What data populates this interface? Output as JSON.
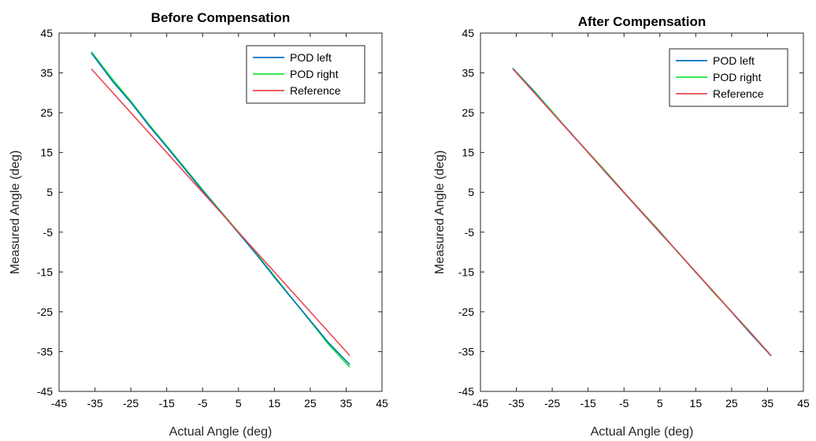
{
  "chart_data": [
    {
      "type": "line",
      "title": "Before Compensation",
      "xlabel": "Actual Angle (deg)",
      "ylabel": "Measured Angle (deg)",
      "xlim": [
        -45,
        45
      ],
      "ylim": [
        -45,
        45
      ],
      "xticks": [
        -45,
        -35,
        -25,
        -15,
        -5,
        5,
        15,
        25,
        35,
        45
      ],
      "yticks": [
        -45,
        -35,
        -25,
        -15,
        -5,
        5,
        15,
        25,
        35,
        45
      ],
      "grid": false,
      "legend_position": "top-right",
      "series": [
        {
          "name": "POD left",
          "color": "#0072BD",
          "x": [
            -36,
            -30,
            -25,
            -20,
            -15,
            -10,
            -5,
            0,
            5,
            10,
            15,
            20,
            25,
            30,
            36
          ],
          "y": [
            40.0,
            32.8,
            27.6,
            21.8,
            16.4,
            10.9,
            5.4,
            0.1,
            -5.2,
            -10.6,
            -16.3,
            -21.8,
            -27.2,
            -32.7,
            -38.3
          ]
        },
        {
          "name": "POD right",
          "color": "#1AE63A",
          "x": [
            -36,
            -30,
            -25,
            -20,
            -15,
            -10,
            -5,
            0,
            5,
            10,
            15,
            20,
            25,
            30,
            36
          ],
          "y": [
            40.3,
            33.3,
            27.9,
            22.1,
            16.7,
            11.2,
            5.7,
            0.3,
            -5.0,
            -10.4,
            -16.0,
            -21.7,
            -27.4,
            -33.1,
            -38.9
          ]
        },
        {
          "name": "Reference",
          "color": "#E8474F",
          "x": [
            -36,
            36
          ],
          "y": [
            36,
            -36
          ]
        }
      ]
    },
    {
      "type": "line",
      "title": "After Compensation",
      "xlabel": "Actual Angle (deg)",
      "ylabel": "Measured Angle (deg)",
      "xlim": [
        -45,
        45
      ],
      "ylim": [
        -45,
        45
      ],
      "xticks": [
        -45,
        -35,
        -25,
        -15,
        -5,
        5,
        15,
        25,
        35,
        45
      ],
      "yticks": [
        -45,
        -35,
        -25,
        -15,
        -5,
        5,
        15,
        25,
        35,
        45
      ],
      "grid": false,
      "legend_position": "top-right",
      "series": [
        {
          "name": "POD left",
          "color": "#0072BD",
          "x": [
            -36,
            -30,
            -25,
            -20,
            -15,
            -10,
            -5,
            0,
            5,
            10,
            15,
            20,
            25,
            30,
            36
          ],
          "y": [
            36.1,
            30.2,
            25.0,
            20.1,
            15.0,
            9.9,
            4.9,
            -0.1,
            -5.1,
            -10.0,
            -15.1,
            -20.0,
            -25.1,
            -30.2,
            -36.1
          ]
        },
        {
          "name": "POD right",
          "color": "#1AE63A",
          "x": [
            -36,
            -30,
            -25,
            -20,
            -15,
            -10,
            -5,
            0,
            5,
            10,
            15,
            20,
            25,
            30,
            36
          ],
          "y": [
            36.2,
            30.4,
            25.3,
            20.0,
            15.1,
            10.2,
            5.0,
            0.1,
            -4.8,
            -10.1,
            -15.0,
            -20.2,
            -25.0,
            -29.9,
            -36.0
          ]
        },
        {
          "name": "Reference",
          "color": "#E8474F",
          "x": [
            -36,
            36
          ],
          "y": [
            36,
            -36
          ]
        }
      ]
    }
  ]
}
